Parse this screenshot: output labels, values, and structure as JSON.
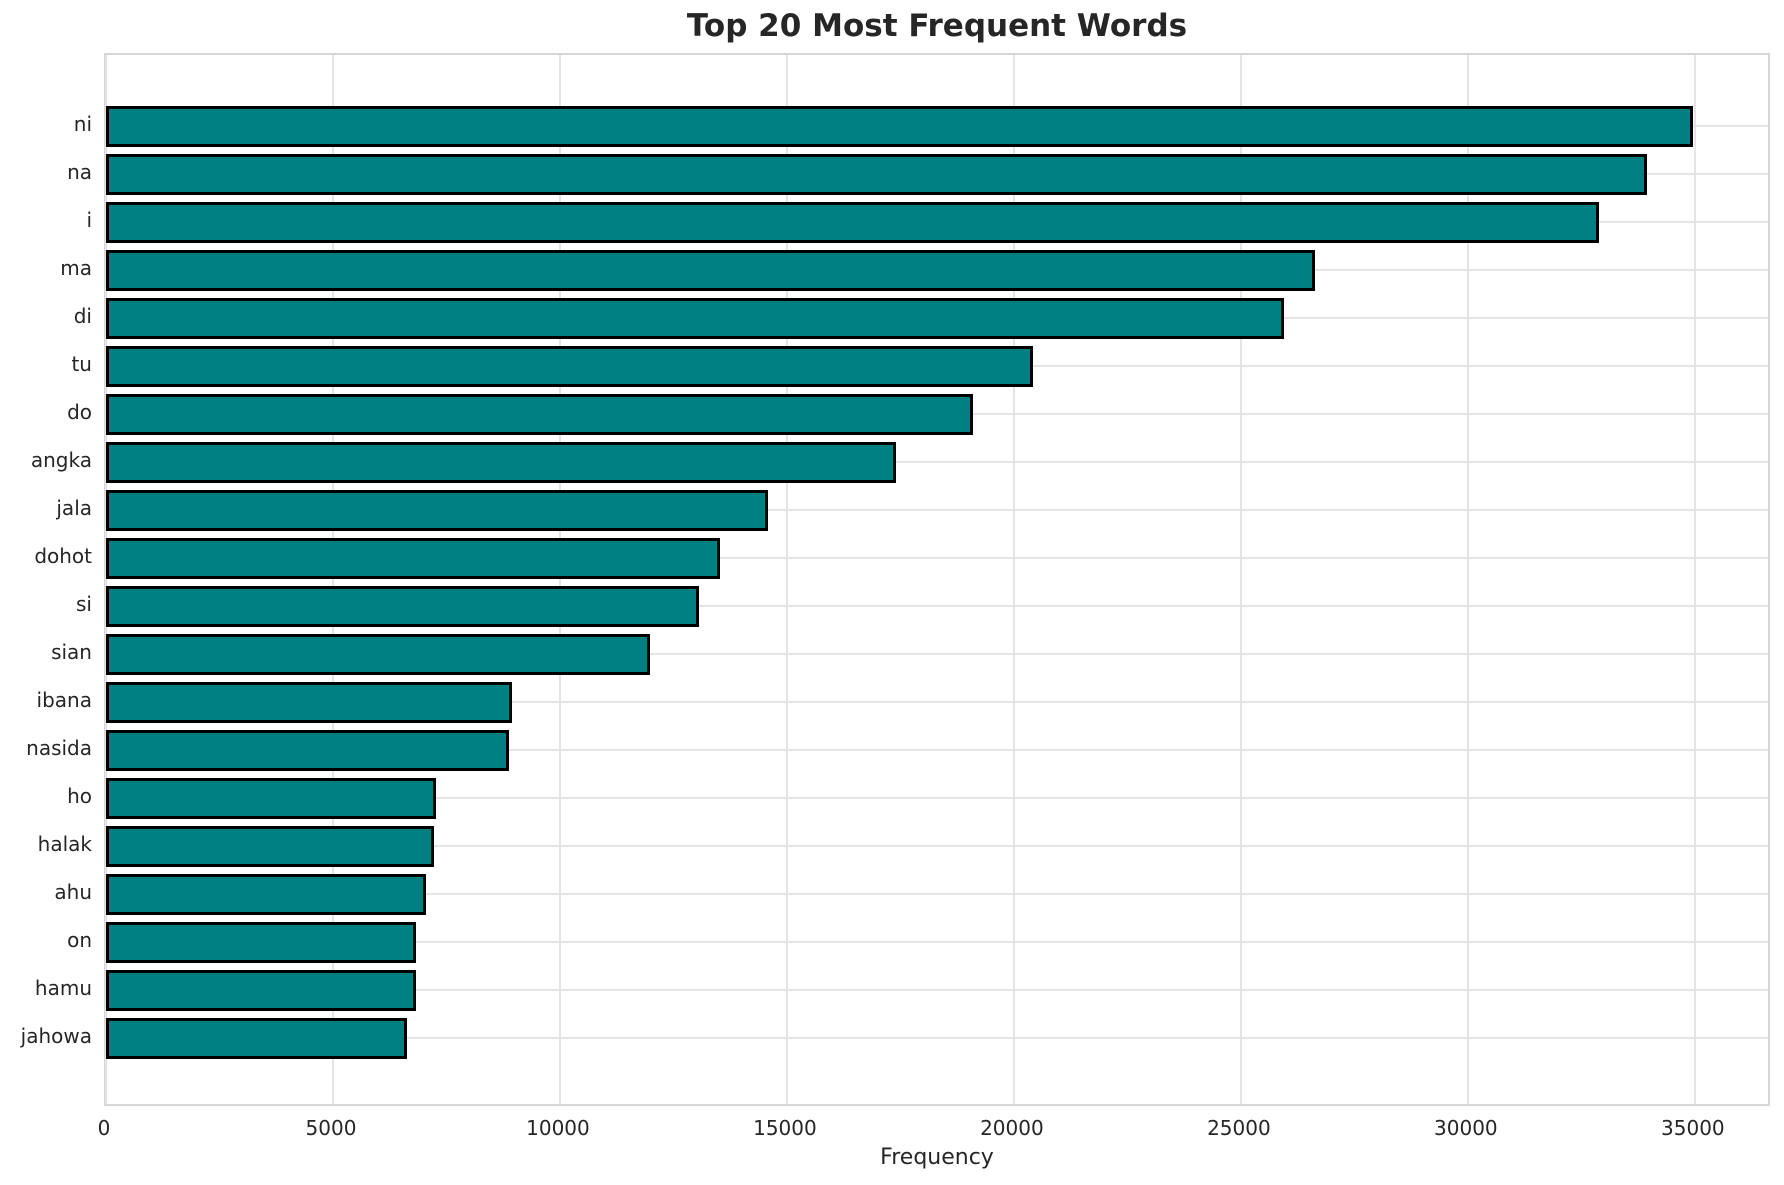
{
  "chart_data": {
    "type": "bar",
    "orientation": "horizontal",
    "title": "Top 20 Most Frequent Words",
    "xlabel": "Frequency",
    "ylabel": "",
    "categories": [
      "ni",
      "na",
      "i",
      "ma",
      "di",
      "tu",
      "do",
      "angka",
      "jala",
      "dohot",
      "si",
      "sian",
      "ibana",
      "nasida",
      "ho",
      "halak",
      "ahu",
      "on",
      "hamu",
      "jahowa"
    ],
    "values": [
      34950,
      33940,
      32900,
      26640,
      25960,
      20430,
      19090,
      17400,
      14580,
      13520,
      13060,
      11990,
      8940,
      8880,
      7280,
      7230,
      7040,
      6820,
      6820,
      6630
    ],
    "xticks": [
      0,
      5000,
      10000,
      15000,
      20000,
      25000,
      30000,
      35000
    ],
    "xlim": [
      0,
      36700
    ],
    "grid": true,
    "legend": false,
    "bar_color": "#008080",
    "bar_edge_color": "#000000",
    "grid_color": "#e4e4e4",
    "text_color": "#262626",
    "background_color": "#ffffff"
  }
}
